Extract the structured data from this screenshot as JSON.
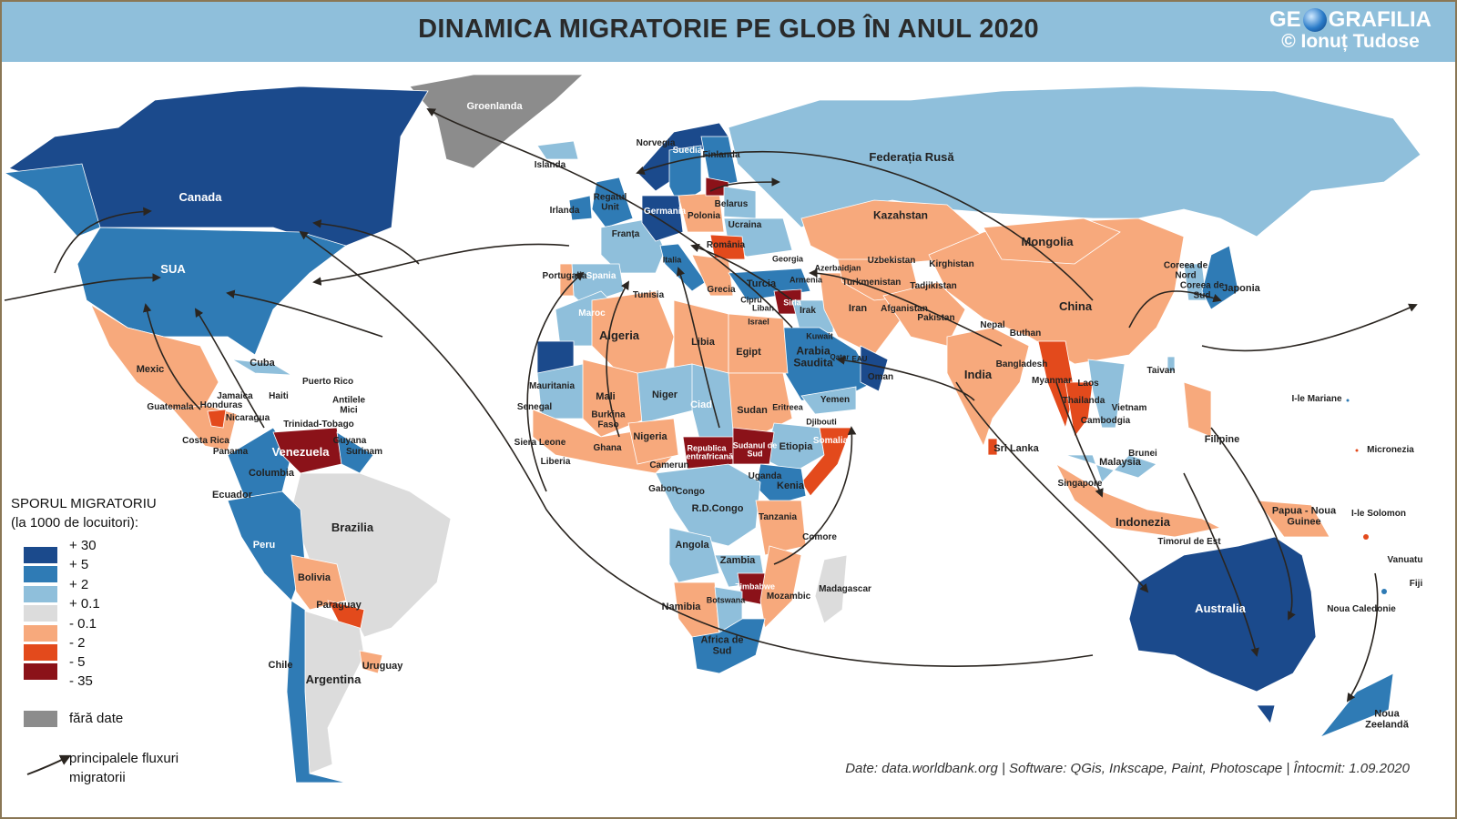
{
  "header": {
    "title": "DINAMICA MIGRATORIE PE GLOB ÎN ANUL 2020",
    "logo_text": "GEOGRAFILIA",
    "author": "© Ionuț Tudose"
  },
  "legend": {
    "title": "SPORUL MIGRATORIU",
    "subtitle": "(la 1000 de locuitori):",
    "classes": [
      {
        "label": "+ 30",
        "color": "#1b4a8c"
      },
      {
        "label": "+ 5",
        "color": "#2f7bb5"
      },
      {
        "label": "+ 2",
        "color": "#8fbfdb"
      },
      {
        "label": "+ 0.1",
        "color": "#dcdcdc"
      },
      {
        "label": "- 0.1",
        "color": "#f7a97c"
      },
      {
        "label": "- 2",
        "color": "#e34a1c"
      },
      {
        "label": "- 5",
        "color": "#8b1219"
      },
      {
        "label": "- 35",
        "color": ""
      }
    ],
    "no_data": {
      "label": "fără date",
      "color": "#8c8c8c"
    },
    "flows": "principalele fluxuri migratorii"
  },
  "footer": "Date: data.worldbank.org | Software: QGis, Inkscape, Paint, Photoscape | Întocmit: 1.09.2020",
  "map": {
    "labels": [
      "Groenlanda",
      "Islanda",
      "Canada",
      "SUA",
      "Mexic",
      "Cuba",
      "Puerto Rico",
      "Jamaica",
      "Haiti",
      "Antilele Mici",
      "Guatemala",
      "Honduras",
      "Nicaragua",
      "Costa Rica",
      "Panama",
      "Trinidad-Tobago",
      "Guyana",
      "Surinam",
      "Venezuela",
      "Columbia",
      "Ecuador",
      "Brazilia",
      "Peru",
      "Bolivia",
      "Paraguay",
      "Chile",
      "Argentina",
      "Uruguay",
      "Norvegia",
      "Suedia",
      "Finlanda",
      "Regatul Unit",
      "Irlanda",
      "Germania",
      "Polonia",
      "Belarus",
      "Ucraina",
      "Franța",
      "România",
      "Portugalia",
      "Spania",
      "Italia",
      "Grecia",
      "Tunisia",
      "Georgia",
      "Azerbaidjan",
      "Armenia",
      "Turcia",
      "Cipru",
      "Liban",
      "Siria",
      "Israel",
      "Irak",
      "Maroc",
      "Algeria",
      "Libia",
      "Egipt",
      "Kuwait",
      "Arabia Saudita",
      "Qatar",
      "EAU",
      "Oman",
      "Yemen",
      "Mauritania",
      "Mali",
      "Niger",
      "Ciad",
      "Sudan",
      "Eritreea",
      "Djibouti",
      "Senegal",
      "Burkina Faso",
      "Nigeria",
      "Ghana",
      "Siera Leone",
      "Liberia",
      "Republica Centrafricană",
      "Sudanul de Sud",
      "Etiopia",
      "Somalia",
      "Camerun",
      "Uganda",
      "Kenia",
      "Gabon",
      "Congo",
      "R.D.Congo",
      "Tanzania",
      "Comore",
      "Angola",
      "Zambia",
      "Zimbabwe",
      "Mozambic",
      "Madagascar",
      "Namibia",
      "Botswana",
      "Africa de Sud",
      "Federația Rusă",
      "Kazahstan",
      "Mongolia",
      "Uzbekistan",
      "Kirghistan",
      "Turkmenistan",
      "Tadjikistan",
      "Afganistan",
      "Iran",
      "Pakistan",
      "Nepal",
      "Buthan",
      "China",
      "India",
      "Bangladesh",
      "Myanmar",
      "Laos",
      "Thailanda",
      "Vietnam",
      "Cambodgia",
      "Sri Lanka",
      "Malaysia",
      "Brunei",
      "Singapore",
      "Indonezia",
      "Timorul de Est",
      "Filipine",
      "Taivan",
      "Coreea de Nord",
      "Coreea de Sud",
      "Japonia",
      "I-le Mariane",
      "Micronezia",
      "Papua - Noua Guinee",
      "I-le Solomon",
      "Vanuatu",
      "Fiji",
      "Noua Caledonie",
      "Australia",
      "Noua Zeelandă"
    ]
  }
}
